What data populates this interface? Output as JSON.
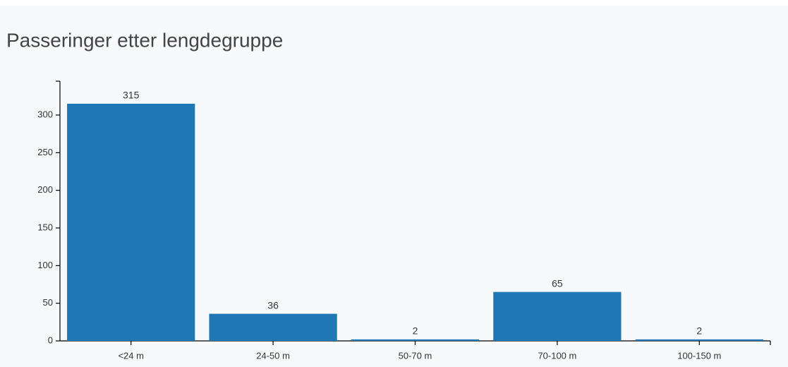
{
  "chart_data": {
    "type": "bar",
    "title": "Passeringer etter lengdegruppe",
    "categories": [
      "<24 m",
      "24-50 m",
      "50-70 m",
      "70-100 m",
      "100-150 m"
    ],
    "values": [
      315,
      36,
      2,
      65,
      2
    ],
    "color": "#1f77b4",
    "ylim": [
      0,
      345
    ],
    "yticks": [
      0,
      50,
      100,
      150,
      200,
      250,
      300
    ]
  }
}
